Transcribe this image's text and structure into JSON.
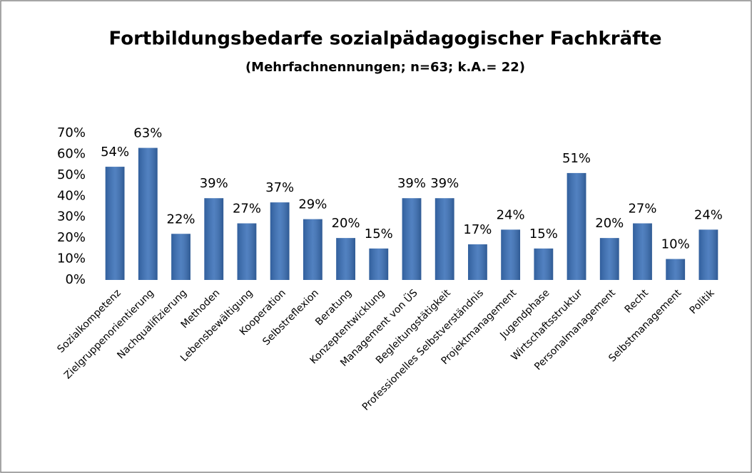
{
  "chart_data": {
    "type": "bar",
    "title": "Fortbildungsbedarfe sozialpädagogischer Fachkräfte",
    "subtitle": "(Mehrfachnennungen; n=63; k.A.= 22)",
    "categories": [
      "Sozialkompetenz",
      "Zielgruppenorientierung",
      "Nachqualifizierung",
      "Methoden",
      "Lebensbewältigung",
      "Kooperation",
      "Selbstreflexion",
      "Beratung",
      "Konzeptentwicklung",
      "Management von ÜS",
      "Begleitungstätigkeit",
      "Professionelles Selbstverständnis",
      "Projektmanagement",
      "Jugendphase",
      "Wirtschaftsstruktur",
      "Personalmanagement",
      "Recht",
      "Selbstmanagement",
      "Politik"
    ],
    "values": [
      54,
      63,
      22,
      39,
      27,
      37,
      29,
      20,
      15,
      39,
      39,
      17,
      24,
      15,
      51,
      20,
      27,
      10,
      24
    ],
    "value_labels": [
      "54%",
      "63%",
      "22%",
      "39%",
      "27%",
      "37%",
      "29%",
      "20%",
      "15%",
      "39%",
      "39%",
      "17%",
      "24%",
      "15%",
      "51%",
      "20%",
      "27%",
      "10%",
      "24%"
    ],
    "color": "#3a70b8",
    "ylim": [
      0,
      70
    ],
    "yticks": [
      {
        "value": 0,
        "label": "0%"
      },
      {
        "value": 10,
        "label": "10%"
      },
      {
        "value": 20,
        "label": "20%"
      },
      {
        "value": 30,
        "label": "30%"
      },
      {
        "value": 40,
        "label": "40%"
      },
      {
        "value": 50,
        "label": "50%"
      },
      {
        "value": 60,
        "label": "60%"
      },
      {
        "value": 70,
        "label": "70%"
      }
    ]
  }
}
